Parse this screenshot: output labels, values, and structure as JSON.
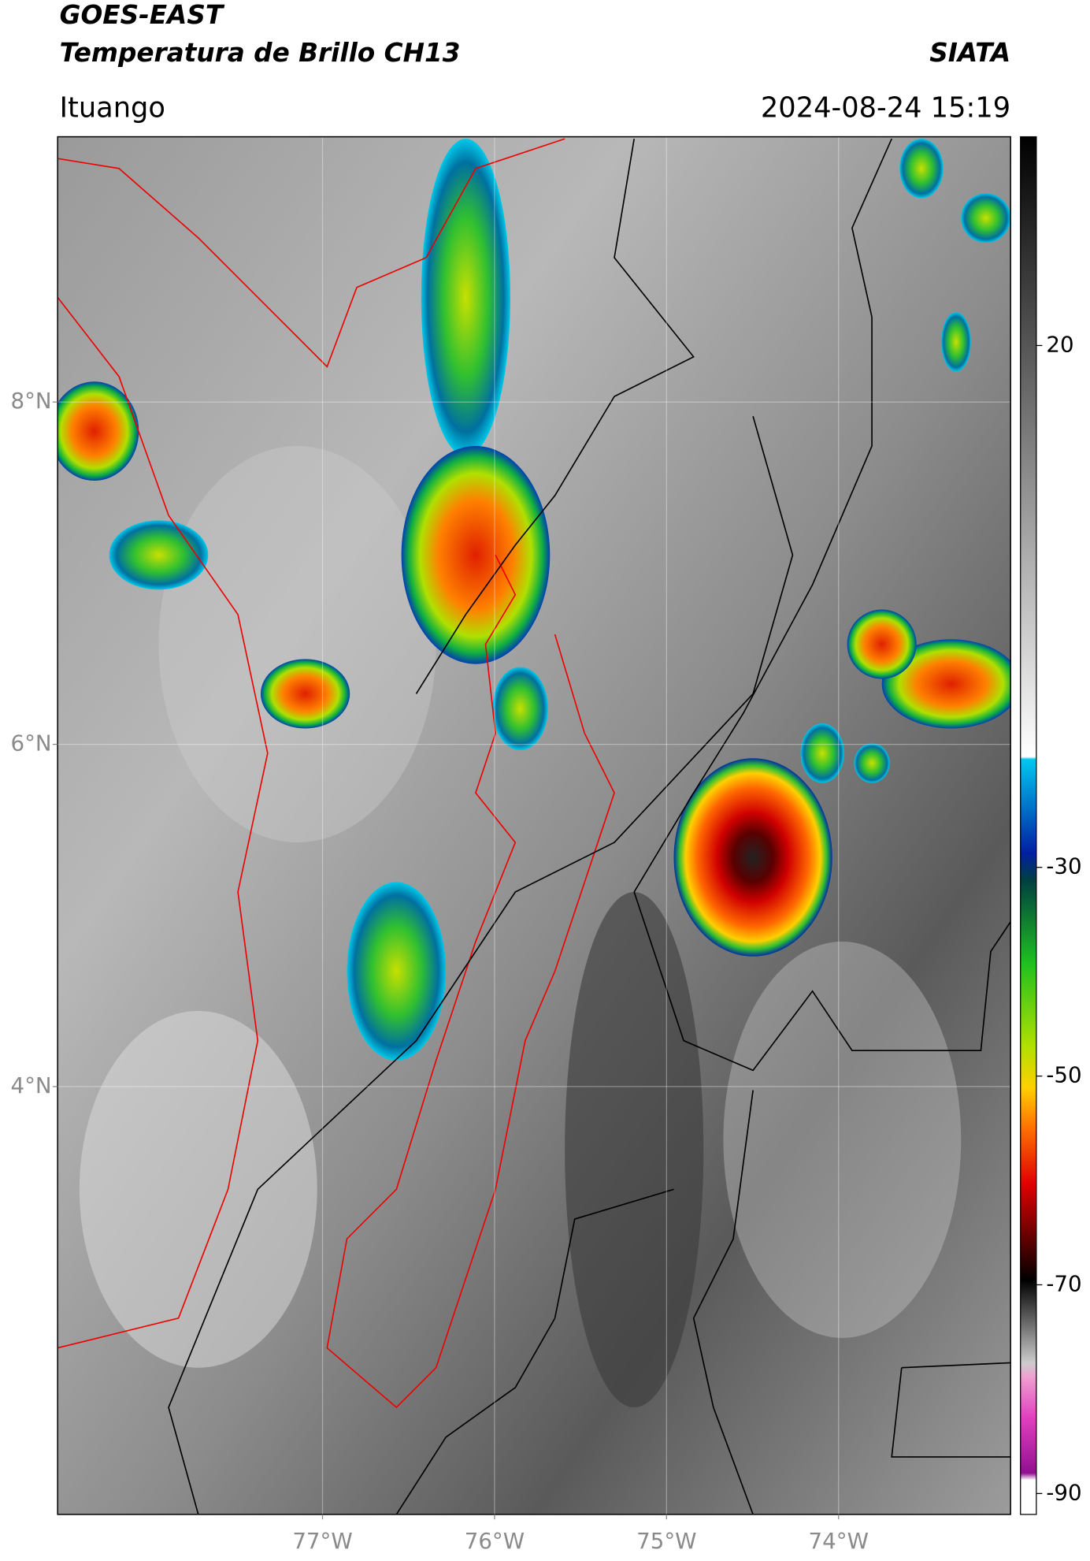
{
  "header": {
    "title_line1": "GOES-EAST",
    "title_line2": "Temperatura de Brillo CH13",
    "org": "SIATA",
    "location": "Ituango",
    "datetime": "2024-08-24 15:19"
  },
  "map": {
    "xlim": [
      -78.54,
      -73.0
    ],
    "ylim": [
      1.5,
      9.55
    ],
    "xticks": [
      {
        "value": -77,
        "label": "77°W"
      },
      {
        "value": -76,
        "label": "76°W"
      },
      {
        "value": -75,
        "label": "75°W"
      },
      {
        "value": -74,
        "label": "74°W"
      }
    ],
    "yticks": [
      {
        "value": 8,
        "label": "8°N"
      },
      {
        "value": 6,
        "label": "6°N"
      },
      {
        "value": 4,
        "label": "4°N"
      }
    ]
  },
  "colorbar": {
    "clim": [
      -92,
      40
    ],
    "ticks": [
      20,
      -30,
      -50,
      -70,
      -90
    ]
  }
}
